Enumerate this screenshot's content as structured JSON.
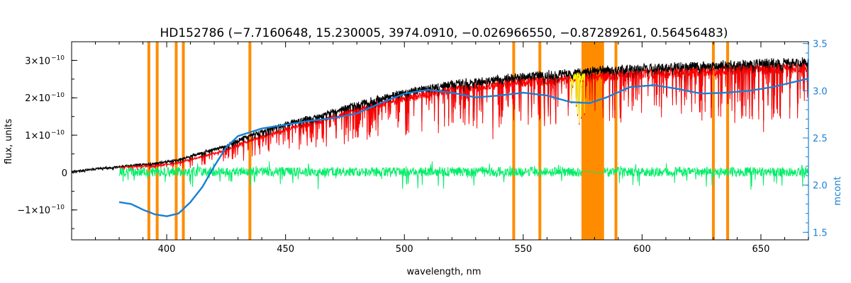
{
  "chart_data": {
    "type": "line",
    "title": "HD152786    (−7.7160648, 15.230005, 3974.0910, −0.026966550, −0.87289261, 0.56456483)",
    "xlabel": "wavelength, nm",
    "ylabel": "flux, units",
    "y2label": "mcont",
    "xlim": [
      360,
      670
    ],
    "ylim": [
      -1.8e-10,
      3.5e-10
    ],
    "y2lim": [
      1.42,
      3.52
    ],
    "x_ticks": [
      400,
      450,
      500,
      550,
      600,
      650
    ],
    "x_tick_labels": [
      "400",
      "450",
      "500",
      "550",
      "600",
      "650"
    ],
    "y_ticks": [
      -1e-10,
      0,
      1e-10,
      2e-10,
      3e-10
    ],
    "y_tick_labels": [
      "−1×10",
      "0",
      "1×10",
      "2×10",
      "3×10"
    ],
    "y_tick_exponent": "−10",
    "y2_ticks": [
      1.5,
      2.0,
      2.5,
      3.0,
      3.5
    ],
    "y2_tick_labels": [
      "1.5",
      "2.0",
      "2.5",
      "3.0",
      "3.5"
    ],
    "colors": {
      "observed": "#000000",
      "model": "#ff0000",
      "residual": "#00ee66",
      "mcont": "#1a7fd4",
      "mask": "#ff8c00",
      "highlight": "#ffff00"
    },
    "masked_lines": [
      392.5,
      396,
      404,
      407,
      435,
      546,
      557,
      589,
      630,
      636
    ],
    "masked_band": [
      574.5,
      584
    ],
    "observed_envelope": [
      [
        360,
        2e-12
      ],
      [
        370,
        1e-11
      ],
      [
        378,
        1.5e-11
      ],
      [
        385,
        2e-11
      ],
      [
        395,
        2.5e-11
      ],
      [
        405,
        3.5e-11
      ],
      [
        415,
        5.5e-11
      ],
      [
        425,
        7.5e-11
      ],
      [
        435,
        1.05e-10
      ],
      [
        450,
        1.35e-10
      ],
      [
        465,
        1.6e-10
      ],
      [
        480,
        1.9e-10
      ],
      [
        495,
        2.15e-10
      ],
      [
        510,
        2.35e-10
      ],
      [
        525,
        2.5e-10
      ],
      [
        540,
        2.6e-10
      ],
      [
        555,
        2.7e-10
      ],
      [
        570,
        2.75e-10
      ],
      [
        585,
        2.85e-10
      ],
      [
        600,
        2.9e-10
      ],
      [
        620,
        2.95e-10
      ],
      [
        640,
        3e-10
      ],
      [
        655,
        3.05e-10
      ],
      [
        670,
        3.08e-10
      ]
    ],
    "mcont_curve": [
      [
        380,
        1.82
      ],
      [
        385,
        1.8
      ],
      [
        390,
        1.74
      ],
      [
        395,
        1.69
      ],
      [
        400,
        1.67
      ],
      [
        405,
        1.7
      ],
      [
        410,
        1.82
      ],
      [
        415,
        1.98
      ],
      [
        420,
        2.2
      ],
      [
        425,
        2.4
      ],
      [
        430,
        2.52
      ],
      [
        440,
        2.6
      ],
      [
        450,
        2.64
      ],
      [
        460,
        2.68
      ],
      [
        470,
        2.71
      ],
      [
        480,
        2.76
      ],
      [
        490,
        2.87
      ],
      [
        500,
        2.97
      ],
      [
        510,
        3.01
      ],
      [
        520,
        2.98
      ],
      [
        530,
        2.93
      ],
      [
        540,
        2.95
      ],
      [
        550,
        2.98
      ],
      [
        560,
        2.95
      ],
      [
        570,
        2.88
      ],
      [
        578,
        2.87
      ],
      [
        585,
        2.93
      ],
      [
        595,
        3.04
      ],
      [
        605,
        3.06
      ],
      [
        615,
        3.02
      ],
      [
        625,
        2.97
      ],
      [
        635,
        2.98
      ],
      [
        645,
        3.0
      ],
      [
        655,
        3.04
      ],
      [
        665,
        3.1
      ],
      [
        670,
        3.13
      ]
    ]
  }
}
